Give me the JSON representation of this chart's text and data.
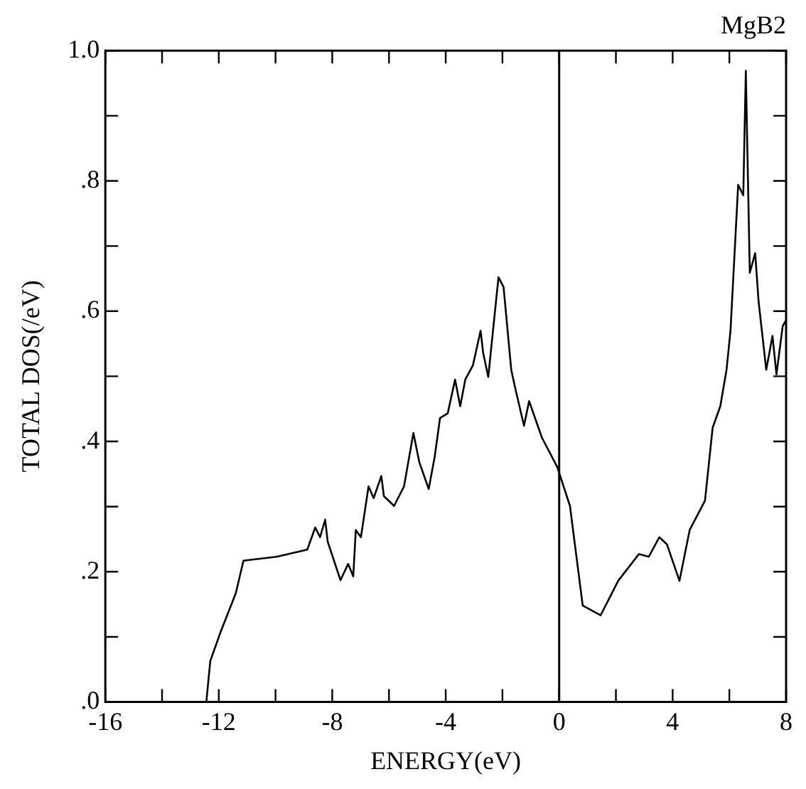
{
  "chart_data": {
    "type": "line",
    "title": "MgB2",
    "xlabel": "ENERGY(eV)",
    "ylabel": "TOTAL DOS(/eV)",
    "series": [
      {
        "color": "#000000",
        "x": [
          -14,
          -12.44,
          -12.3,
          -11.94,
          -11.4,
          -11.13,
          -9.96,
          -8.88,
          -8.6,
          -8.43,
          -8.25,
          -8.16,
          -7.71,
          -7.44,
          -7.26,
          -7.17,
          -6.99,
          -6.72,
          -6.54,
          -6.27,
          -6.18,
          -5.82,
          -5.47,
          -5.14,
          -4.93,
          -4.6,
          -4.39,
          -4.2,
          -3.93,
          -3.67,
          -3.49,
          -3.31,
          -3.04,
          -2.77,
          -2.68,
          -2.5,
          -2.14,
          -1.96,
          -1.69,
          -1.54,
          -1.24,
          -1.06,
          -0.61,
          -0.07,
          0.38,
          0.83,
          1.46,
          2.08,
          2.81,
          3.16,
          3.53,
          3.8,
          4.24,
          4.6,
          5.14,
          5.41,
          5.68,
          5.9,
          6.04,
          6.31,
          6.49,
          6.58,
          6.72,
          6.91,
          7.03,
          7.3,
          7.52,
          7.66,
          7.88,
          7.98
        ],
        "values": [
          0,
          0,
          0.063,
          0.107,
          0.167,
          0.217,
          0.223,
          0.234,
          0.268,
          0.253,
          0.28,
          0.246,
          0.187,
          0.212,
          0.193,
          0.264,
          0.253,
          0.331,
          0.313,
          0.347,
          0.316,
          0.301,
          0.331,
          0.413,
          0.368,
          0.327,
          0.376,
          0.436,
          0.443,
          0.495,
          0.454,
          0.495,
          0.517,
          0.57,
          0.536,
          0.499,
          0.652,
          0.637,
          0.51,
          0.48,
          0.424,
          0.462,
          0.406,
          0.361,
          0.301,
          0.148,
          0.133,
          0.186,
          0.227,
          0.223,
          0.253,
          0.242,
          0.186,
          0.264,
          0.309,
          0.421,
          0.454,
          0.51,
          0.57,
          0.794,
          0.778,
          0.969,
          0.659,
          0.689,
          0.615,
          0.51,
          0.562,
          0.503,
          0.577,
          0.585
        ]
      }
    ],
    "xlim": [
      -16,
      8
    ],
    "xticks": [
      -16,
      {
        "value": -14,
        "label": null
      },
      -12,
      {
        "value": -10,
        "label": null
      },
      -8,
      {
        "value": -6,
        "label": null
      },
      -4,
      {
        "value": -2,
        "label": null
      },
      0,
      {
        "value": 2,
        "label": null
      },
      4,
      {
        "value": 6,
        "label": null
      },
      8
    ],
    "ylim": [
      0,
      1
    ],
    "yticks": [
      {
        "value": 0,
        "label": ".0"
      },
      {
        "value": 0.1,
        "label": null
      },
      {
        "value": 0.2,
        "label": ".2"
      },
      {
        "value": 0.3,
        "label": null
      },
      {
        "value": 0.4,
        "label": ".4"
      },
      {
        "value": 0.5,
        "label": null
      },
      {
        "value": 0.6,
        "label": ".6"
      },
      {
        "value": 0.7,
        "label": null
      },
      {
        "value": 0.8,
        "label": ".8"
      },
      {
        "value": 0.9,
        "label": null
      },
      {
        "value": 1,
        "label": "1.0"
      }
    ],
    "ref_lines": [
      {
        "axis": "x",
        "value": 0,
        "color": "#000000"
      }
    ],
    "grid": false,
    "legend": false,
    "marker": "none",
    "line_style": "solid"
  }
}
